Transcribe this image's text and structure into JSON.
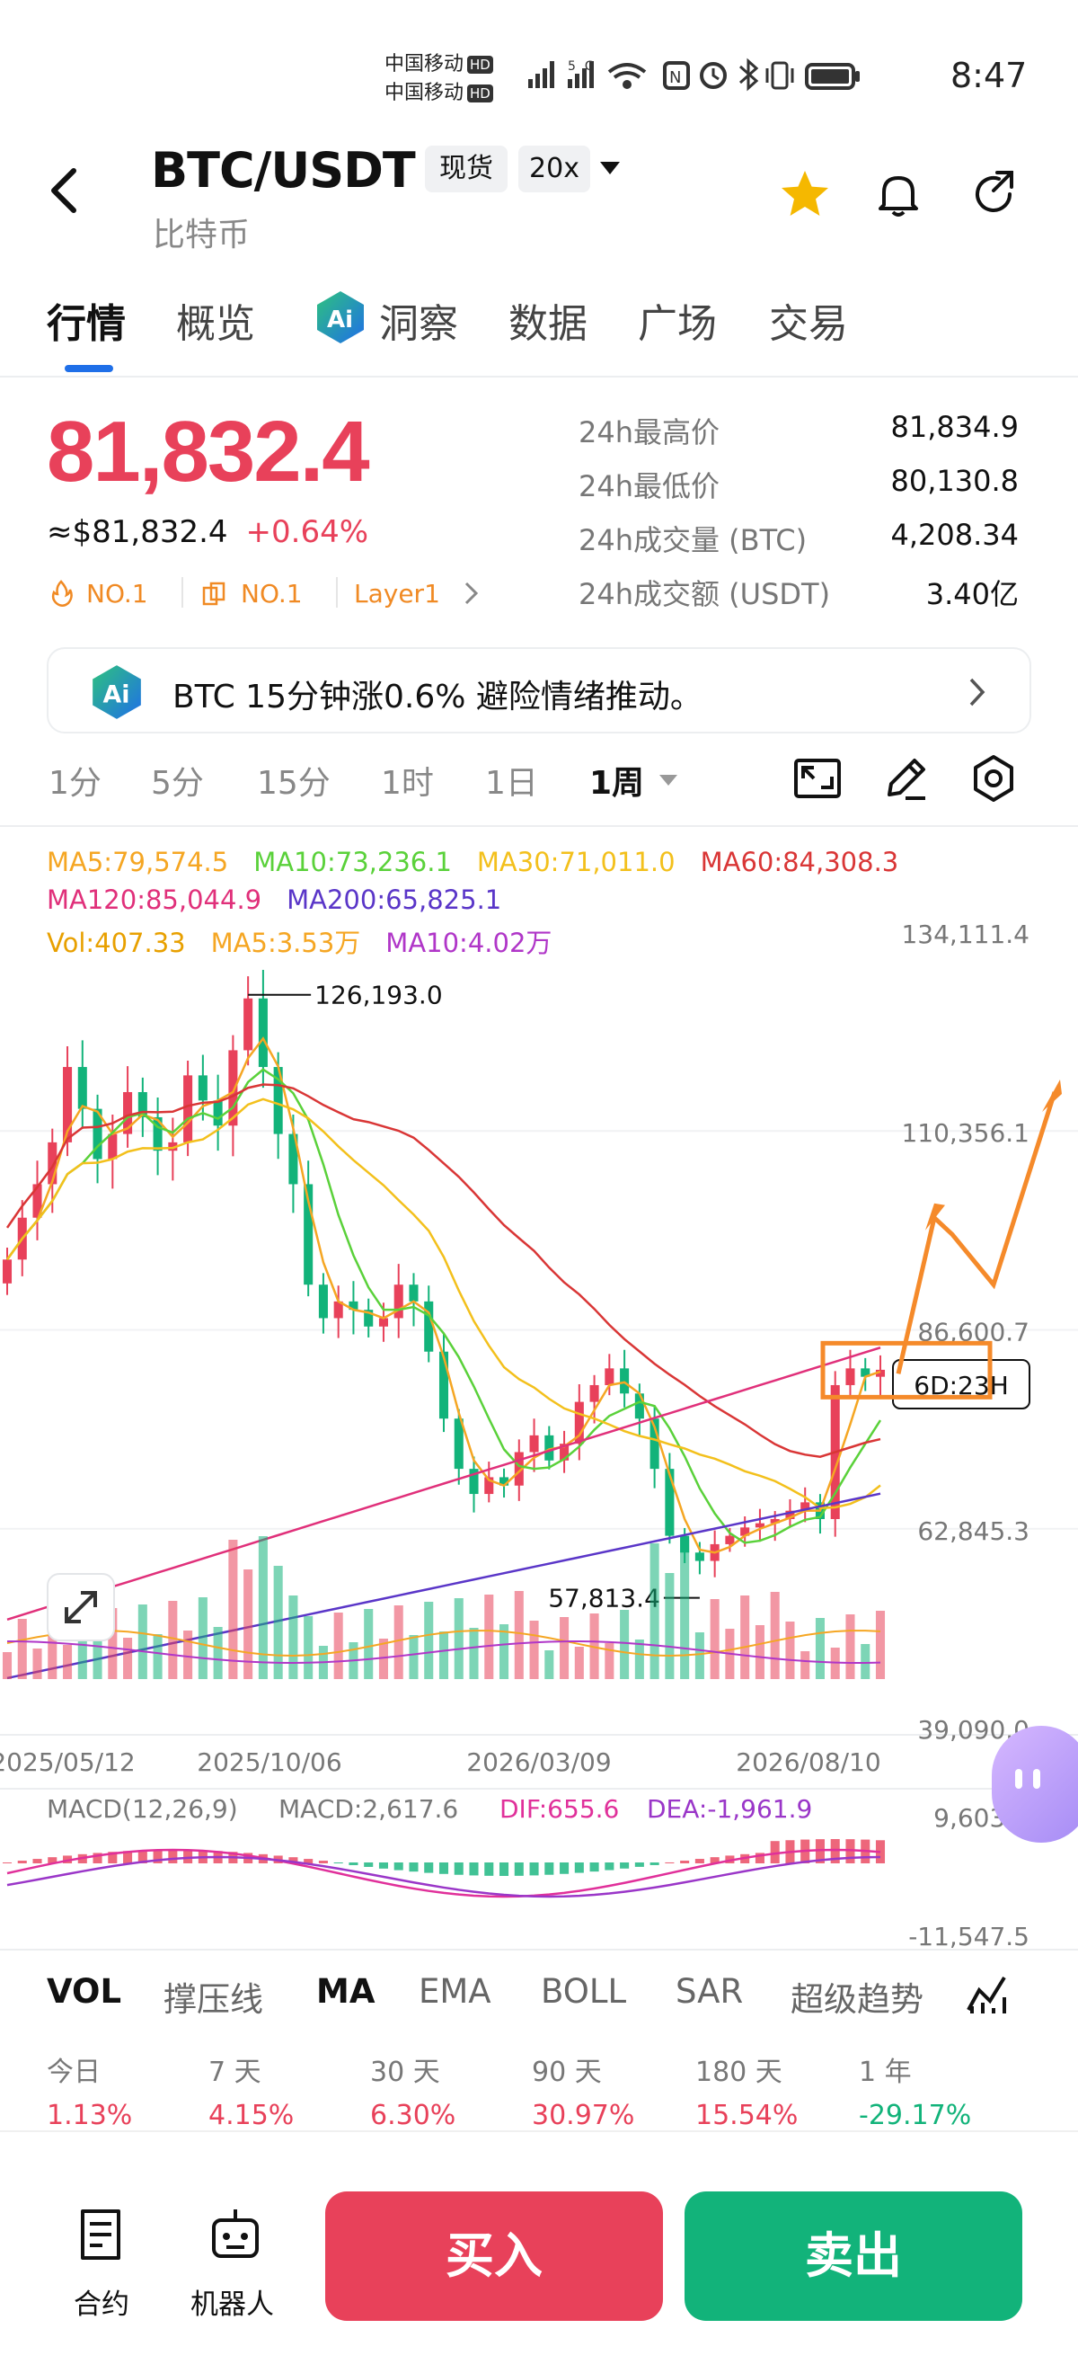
{
  "status_bar": {
    "carrier1": "中国移动",
    "carrier2": "中国移动",
    "hd": "HD",
    "time": "8:47"
  },
  "header": {
    "pair": "BTC/USDT",
    "name": "比特币",
    "spot_tag": "现货",
    "leverage_tag": "20x",
    "icons": [
      "back-icon",
      "star-icon",
      "bell-icon",
      "share-icon"
    ],
    "star_color": "#f5b800"
  },
  "tabs": [
    {
      "label": "行情",
      "active": true
    },
    {
      "label": "概览",
      "active": false
    },
    {
      "label": "洞察",
      "active": false
    },
    {
      "label": "数据",
      "active": false
    },
    {
      "label": "广场",
      "active": false
    },
    {
      "label": "交易",
      "active": false
    }
  ],
  "price": {
    "last": "81,832.4",
    "usd": "≈$81,832.4",
    "change": "+0.64%",
    "up_color": "#e8415a",
    "down_color": "#12b37a",
    "ranks": [
      "NO.1",
      "NO.1",
      "Layer1"
    ]
  },
  "stats": [
    {
      "label": "24h最高价",
      "value": "81,834.9"
    },
    {
      "label": "24h最低价",
      "value": "80,130.8"
    },
    {
      "label": "24h成交量 (BTC)",
      "value": "4,208.34"
    },
    {
      "label": "24h成交额 (USDT)",
      "value": "3.40亿"
    }
  ],
  "banner": {
    "text": "BTC 15分钟涨0.6% 避险情绪推动。"
  },
  "timeframes": [
    {
      "label": "1分",
      "active": false
    },
    {
      "label": "5分",
      "active": false
    },
    {
      "label": "15分",
      "active": false
    },
    {
      "label": "1时",
      "active": false
    },
    {
      "label": "1日",
      "active": false
    },
    {
      "label": "1周",
      "active": true
    }
  ],
  "ma_legend": {
    "ma5": "MA5:79,574.5",
    "ma10": "MA10:73,236.1",
    "ma30": "MA30:71,011.0",
    "ma60": "MA60:84,308.3",
    "ma120": "MA120:85,044.9",
    "ma200": "MA200:65,825.1",
    "vol": "Vol:407.33",
    "vol_ma5": "MA5:3.53万",
    "vol_ma10": "MA10:4.02万"
  },
  "macd_legend": {
    "title": "MACD(12,26,9)",
    "macd": "MACD:2,617.6",
    "dif": "DIF:655.6",
    "dea": "DEA:-1,961.9"
  },
  "chart_data": {
    "type": "candlestick",
    "interval": "1周",
    "y_ticks": [
      "134,111.4",
      "110,356.1",
      "86,600.7",
      "62,845.3",
      "39,090.0"
    ],
    "macd_ticks": [
      "9,603.2",
      "-11,547.5"
    ],
    "x_ticks": [
      "2025/05/12",
      "2025/10/06",
      "2026/03/09",
      "2026/08/10"
    ],
    "high_marker": "126,193.0",
    "low_marker": "57,813.4",
    "countdown": "6D:23H",
    "ylim": [
      39090.0,
      134111.4
    ],
    "close_path": [
      95000,
      100000,
      104000,
      109000,
      118000,
      113000,
      107000,
      110000,
      115000,
      112000,
      108000,
      109000,
      117000,
      114000,
      111000,
      120000,
      126193,
      118000,
      110000,
      104000,
      92000,
      88000,
      90000,
      89000,
      87000,
      88000,
      92000,
      90000,
      84000,
      76000,
      70000,
      67000,
      69000,
      68000,
      72000,
      74000,
      71000,
      73000,
      78000,
      80000,
      82000,
      79000,
      76000,
      70000,
      62000,
      60000,
      59000,
      61000,
      62000,
      63000,
      63500,
      64000,
      65000,
      66000,
      64000,
      80000,
      82000,
      81000,
      81832.4
    ],
    "colors": {
      "ma5": "#f5a623",
      "ma10": "#5ad13a",
      "ma30": "#f3c01c",
      "ma60": "#d93636",
      "ma120": "#e0307a",
      "ma200": "#5a36c8",
      "macd_dif": "#e0309a",
      "macd_dea": "#9a36c8",
      "annotation": "#f58a2a"
    }
  },
  "indicators": [
    {
      "label": "VOL",
      "active": true
    },
    {
      "label": "撑压线",
      "active": false
    },
    {
      "label": "MA",
      "active": true
    },
    {
      "label": "EMA",
      "active": false
    },
    {
      "label": "BOLL",
      "active": false
    },
    {
      "label": "SAR",
      "active": false
    },
    {
      "label": "超级趋势",
      "active": false
    }
  ],
  "returns": [
    {
      "period": "今日",
      "value": "1.13%",
      "up": true
    },
    {
      "period": "7 天",
      "value": "4.15%",
      "up": true
    },
    {
      "period": "30 天",
      "value": "6.30%",
      "up": true
    },
    {
      "period": "90 天",
      "value": "30.97%",
      "up": true
    },
    {
      "period": "180 天",
      "value": "15.54%",
      "up": true
    },
    {
      "period": "1 年",
      "value": "-29.17%",
      "up": false
    }
  ],
  "bottom": {
    "contract": "合约",
    "robot": "机器人",
    "buy": "买入",
    "sell": "卖出"
  }
}
